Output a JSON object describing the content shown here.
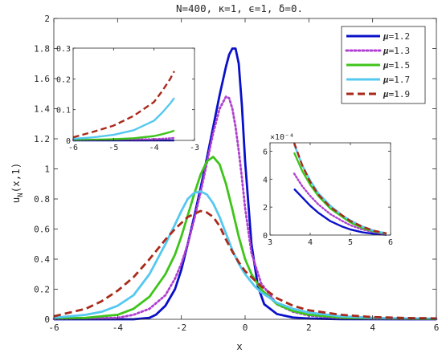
{
  "chart_data": [
    {
      "type": "line",
      "title": "N=400,  κ=1,  ϵ=1,  δ=0.",
      "xlabel": "x",
      "ylabel": "u_N(x,1)",
      "xlim": [
        -6,
        6
      ],
      "ylim": [
        0,
        2
      ],
      "xticks": [
        "-6",
        "-4",
        "-2",
        "0",
        "2",
        "4",
        "6"
      ],
      "yticks": [
        "0",
        "0.2",
        "0.4",
        "0.6",
        "0.8",
        "1",
        "1.2",
        "1.4",
        "1.6",
        "1.8",
        "2"
      ],
      "grid": false,
      "legend_position": "top-right",
      "legend_prefix": "μ",
      "series": [
        {
          "name": "μ=1.2",
          "color": "#0a10c8",
          "style": "solid",
          "x": [
            -6,
            -4,
            -3.5,
            -3,
            -2.8,
            -2.5,
            -2.2,
            -2,
            -1.8,
            -1.6,
            -1.4,
            -1.2,
            -1.0,
            -0.8,
            -0.6,
            -0.5,
            -0.4,
            -0.3,
            -0.2,
            -0.1,
            0,
            0.2,
            0.4,
            0.6,
            1,
            1.5,
            2,
            3,
            6
          ],
          "y": [
            0,
            0,
            0,
            0.01,
            0.03,
            0.09,
            0.2,
            0.33,
            0.5,
            0.68,
            0.87,
            1.07,
            1.28,
            1.49,
            1.68,
            1.76,
            1.8,
            1.8,
            1.7,
            1.42,
            1.05,
            0.5,
            0.22,
            0.1,
            0.035,
            0.012,
            0.005,
            0.001,
            0
          ]
        },
        {
          "name": "μ=1.3",
          "color": "#b040d0",
          "style": "dotted",
          "x": [
            -6,
            -4,
            -3.5,
            -3,
            -2.5,
            -2.2,
            -2,
            -1.8,
            -1.6,
            -1.4,
            -1.2,
            -1.0,
            -0.8,
            -0.6,
            -0.5,
            -0.4,
            -0.3,
            -0.2,
            -0.1,
            0,
            0.2,
            0.5,
            1,
            1.5,
            2,
            3,
            4,
            6
          ],
          "y": [
            0.002,
            0.01,
            0.03,
            0.07,
            0.16,
            0.27,
            0.37,
            0.5,
            0.66,
            0.84,
            1.04,
            1.24,
            1.4,
            1.48,
            1.47,
            1.4,
            1.28,
            1.12,
            0.94,
            0.74,
            0.44,
            0.24,
            0.1,
            0.05,
            0.025,
            0.008,
            0.003,
            0.001
          ]
        },
        {
          "name": "μ=1.5",
          "color": "#3ec41a",
          "style": "solid",
          "x": [
            -6,
            -5,
            -4,
            -3.5,
            -3,
            -2.5,
            -2.2,
            -2,
            -1.8,
            -1.6,
            -1.4,
            -1.2,
            -1.0,
            -0.8,
            -0.6,
            -0.4,
            -0.2,
            0,
            0.2,
            0.5,
            1,
            1.5,
            2,
            3,
            4,
            6
          ],
          "y": [
            0.005,
            0.01,
            0.03,
            0.07,
            0.15,
            0.3,
            0.43,
            0.55,
            0.69,
            0.83,
            0.96,
            1.05,
            1.08,
            1.03,
            0.9,
            0.73,
            0.55,
            0.4,
            0.3,
            0.2,
            0.1,
            0.055,
            0.03,
            0.012,
            0.005,
            0.002
          ]
        },
        {
          "name": "μ=1.7",
          "color": "#55c8f0",
          "style": "solid",
          "x": [
            -6,
            -5,
            -4.5,
            -4,
            -3.5,
            -3,
            -2.5,
            -2.2,
            -2,
            -1.8,
            -1.6,
            -1.4,
            -1.2,
            -1.0,
            -0.8,
            -0.6,
            -0.4,
            -0.2,
            0,
            0.3,
            0.5,
            1,
            1.5,
            2,
            3,
            4,
            5,
            6
          ],
          "y": [
            0.01,
            0.03,
            0.05,
            0.09,
            0.16,
            0.3,
            0.5,
            0.63,
            0.72,
            0.8,
            0.84,
            0.85,
            0.83,
            0.77,
            0.68,
            0.57,
            0.46,
            0.37,
            0.3,
            0.22,
            0.18,
            0.11,
            0.07,
            0.045,
            0.02,
            0.01,
            0.006,
            0.004
          ]
        },
        {
          "name": "μ=1.9",
          "color": "#a82a1a",
          "style": "dashed",
          "x": [
            -6,
            -5,
            -4.5,
            -4,
            -3.5,
            -3,
            -2.5,
            -2.2,
            -2,
            -1.8,
            -1.6,
            -1.4,
            -1.2,
            -1.0,
            -0.8,
            -0.6,
            -0.4,
            -0.2,
            0,
            0.3,
            0.5,
            1,
            1.5,
            2,
            3,
            4,
            5,
            6
          ],
          "y": [
            0.02,
            0.07,
            0.12,
            0.19,
            0.28,
            0.4,
            0.53,
            0.6,
            0.64,
            0.68,
            0.7,
            0.72,
            0.71,
            0.68,
            0.62,
            0.53,
            0.45,
            0.38,
            0.32,
            0.26,
            0.22,
            0.14,
            0.09,
            0.06,
            0.03,
            0.015,
            0.009,
            0.006
          ]
        }
      ]
    },
    {
      "type": "line",
      "role": "inset-left-tail",
      "xlim": [
        -6,
        -3
      ],
      "ylim": [
        0,
        0.3
      ],
      "xticks": [
        "-6",
        "-5",
        "-4",
        "-3"
      ],
      "yticks": [
        "0",
        "0.1",
        "0.2",
        "0.3"
      ],
      "series": [
        {
          "name": "μ=1.2",
          "x": [
            -6,
            -5,
            -4,
            -3.5
          ],
          "y": [
            0,
            0,
            0,
            0
          ]
        },
        {
          "name": "μ=1.3",
          "x": [
            -6,
            -5.5,
            -5,
            -4.5,
            -4,
            -3.7,
            -3.5
          ],
          "y": [
            0.001,
            0.001,
            0.002,
            0.003,
            0.004,
            0.006,
            0.008
          ]
        },
        {
          "name": "μ=1.5",
          "x": [
            -6,
            -5.5,
            -5,
            -4.5,
            -4,
            -3.8,
            -3.6,
            -3.5
          ],
          "y": [
            0.001,
            0.002,
            0.004,
            0.007,
            0.014,
            0.02,
            0.027,
            0.032
          ]
        },
        {
          "name": "μ=1.7",
          "x": [
            -6,
            -5.5,
            -5,
            -4.5,
            -4,
            -3.8,
            -3.6,
            -3.5
          ],
          "y": [
            0.005,
            0.01,
            0.018,
            0.033,
            0.064,
            0.09,
            0.12,
            0.138
          ]
        },
        {
          "name": "μ=1.9",
          "x": [
            -6,
            -5.5,
            -5,
            -4.5,
            -4,
            -3.8,
            -3.6,
            -3.5
          ],
          "y": [
            0.01,
            0.028,
            0.048,
            0.08,
            0.125,
            0.16,
            0.2,
            0.225
          ]
        }
      ]
    },
    {
      "type": "line",
      "role": "inset-right-tail",
      "xlim": [
        3,
        6
      ],
      "ylim": [
        0,
        6.6
      ],
      "multiplier": "×10⁻⁴",
      "xticks": [
        "3",
        "4",
        "5",
        "6"
      ],
      "yticks": [
        "0",
        "2",
        "4",
        "6"
      ],
      "series": [
        {
          "name": "μ=1.2",
          "x": [
            3.6,
            3.8,
            4.0,
            4.2,
            4.5,
            4.8,
            5.0,
            5.3,
            5.6,
            5.9
          ],
          "y": [
            3.3,
            2.7,
            2.1,
            1.6,
            1.0,
            0.6,
            0.4,
            0.2,
            0.08,
            0.02
          ]
        },
        {
          "name": "μ=1.3",
          "x": [
            3.6,
            3.8,
            4.0,
            4.2,
            4.5,
            4.8,
            5.0,
            5.3,
            5.6,
            5.9
          ],
          "y": [
            4.4,
            3.5,
            2.8,
            2.2,
            1.5,
            1.0,
            0.7,
            0.4,
            0.2,
            0.05
          ]
        },
        {
          "name": "μ=1.5",
          "x": [
            3.6,
            3.8,
            4.0,
            4.2,
            4.5,
            4.8,
            5.0,
            5.3,
            5.6,
            5.9
          ],
          "y": [
            5.9,
            4.6,
            3.6,
            2.8,
            1.9,
            1.3,
            0.9,
            0.5,
            0.25,
            0.1
          ]
        },
        {
          "name": "μ=1.7",
          "x": [
            3.6,
            3.8,
            4.0,
            4.2,
            4.5,
            4.8,
            5.0,
            5.3,
            5.6,
            5.9
          ],
          "y": [
            6.5,
            5.0,
            3.9,
            3.0,
            2.1,
            1.4,
            1.05,
            0.6,
            0.3,
            0.12
          ]
        },
        {
          "name": "μ=1.9",
          "x": [
            3.6,
            3.8,
            4.0,
            4.2,
            4.5,
            4.8,
            5.0,
            5.3,
            5.6,
            5.9
          ],
          "y": [
            6.6,
            5.0,
            3.8,
            2.9,
            2.0,
            1.4,
            1.0,
            0.6,
            0.3,
            0.12
          ]
        }
      ]
    }
  ]
}
